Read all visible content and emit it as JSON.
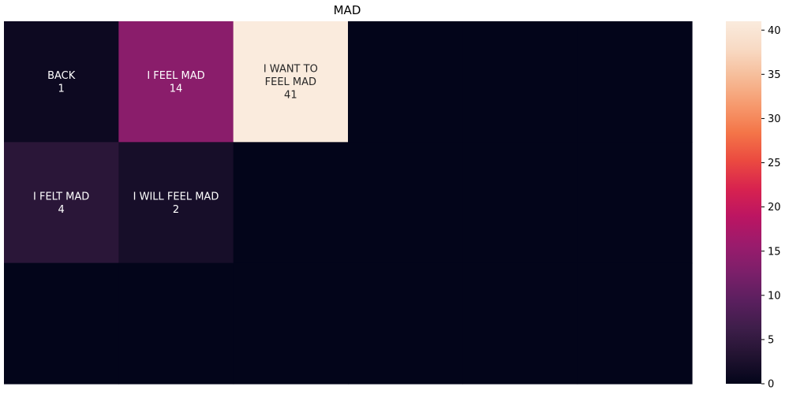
{
  "chart_data": {
    "type": "heatmap",
    "title": "MAD",
    "xlabel": "",
    "ylabel": "",
    "grid": false,
    "legend": "colorbar-right",
    "rows": 3,
    "cols": 6,
    "cells": [
      {
        "row": 0,
        "col": 0,
        "label": [
          "BACK"
        ],
        "value": 1
      },
      {
        "row": 0,
        "col": 1,
        "label": [
          "I FEEL MAD"
        ],
        "value": 14
      },
      {
        "row": 0,
        "col": 2,
        "label": [
          "I WANT TO",
          "FEEL MAD"
        ],
        "value": 41
      },
      {
        "row": 1,
        "col": 0,
        "label": [
          "I FELT MAD"
        ],
        "value": 4
      },
      {
        "row": 1,
        "col": 1,
        "label": [
          "I WILL FEEL MAD"
        ],
        "value": 2
      }
    ],
    "empty_value": 0,
    "vmin": 0,
    "vmax": 41,
    "colorbar_ticks": [
      0,
      5,
      10,
      15,
      20,
      25,
      30,
      35,
      40
    ],
    "colormap": [
      "#03051a",
      "#221331",
      "#3e1e4a",
      "#5b1f5f",
      "#7c1f6a",
      "#9b1b6c",
      "#bc1562",
      "#d8234f",
      "#eb4a40",
      "#f47548",
      "#f69a6e",
      "#f6bc98",
      "#f8dac4",
      "#faebdd"
    ]
  }
}
